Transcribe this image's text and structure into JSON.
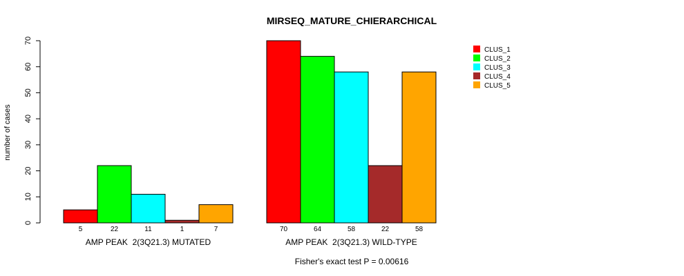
{
  "chart_data": {
    "type": "bar",
    "title": "MIRSEQ_MATURE_CHIERARCHICAL",
    "ylabel": "number of cases",
    "ylim": [
      0,
      70
    ],
    "yticks": [
      0,
      10,
      20,
      30,
      40,
      50,
      60,
      70
    ],
    "groups": [
      "AMP PEAK  2(3Q21.3) MUTATED",
      "AMP PEAK  2(3Q21.3) WILD-TYPE"
    ],
    "series": [
      {
        "name": "CLUS_1",
        "color": "#ff0000",
        "values": [
          5,
          70
        ]
      },
      {
        "name": "CLUS_2",
        "color": "#00ff00",
        "values": [
          22,
          64
        ]
      },
      {
        "name": "CLUS_3",
        "color": "#00ffff",
        "values": [
          11,
          58
        ]
      },
      {
        "name": "CLUS_4",
        "color": "#a52a2a",
        "values": [
          1,
          22
        ]
      },
      {
        "name": "CLUS_5",
        "color": "#ffa500",
        "values": [
          7,
          58
        ]
      }
    ],
    "legend_position": "top-right",
    "footnote": "Fisher's exact test P = 0.00616"
  }
}
